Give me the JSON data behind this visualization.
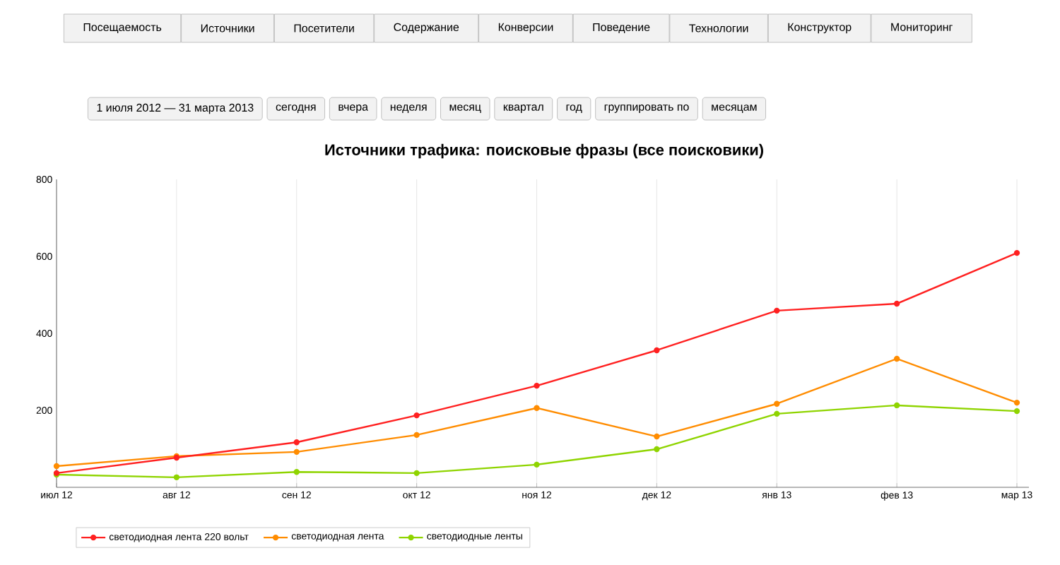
{
  "chart_data": {
    "type": "line",
    "title": "Источники трафика: поисковые фразы (все поисковики)",
    "annotations": [
      "Посещаемость",
      "Источники",
      "Посетители",
      "Содержание",
      "Конверсии",
      "Поведение",
      "Технологии",
      "Конструктор",
      "Мониторинг",
      "1 июля 2012 — 31 марта 2013",
      "сегодня",
      "вчера",
      "неделя",
      "месяц",
      "квартал",
      "год",
      "группировать по",
      "месяцам"
    ],
    "categories": [
      "июл 12",
      "авг 12",
      "сен 12",
      "окт 12",
      "ноя 12",
      "дек 12",
      "янв 13",
      "фев 13",
      "мар 13"
    ],
    "series": [
      {
        "name": "светодиодная лента 220 вольт",
        "color": "#ff2020",
        "values": [
          37,
          77,
          117,
          187,
          264,
          356,
          459,
          477,
          609
        ]
      },
      {
        "name": "светодиодная лента",
        "color": "#ff8c00",
        "values": [
          55,
          81,
          92,
          136,
          206,
          132,
          217,
          334,
          220
        ]
      },
      {
        "name": "светодиодные ленты",
        "color": "#8fd400",
        "values": [
          33,
          26,
          40,
          37,
          59,
          99,
          191,
          213,
          198
        ]
      }
    ],
    "ylim": [
      0,
      800
    ],
    "yticks": [
      200,
      400,
      600,
      800
    ],
    "grid": "x",
    "legend": "bottom",
    "marker": "circle",
    "line_style": "solid"
  }
}
